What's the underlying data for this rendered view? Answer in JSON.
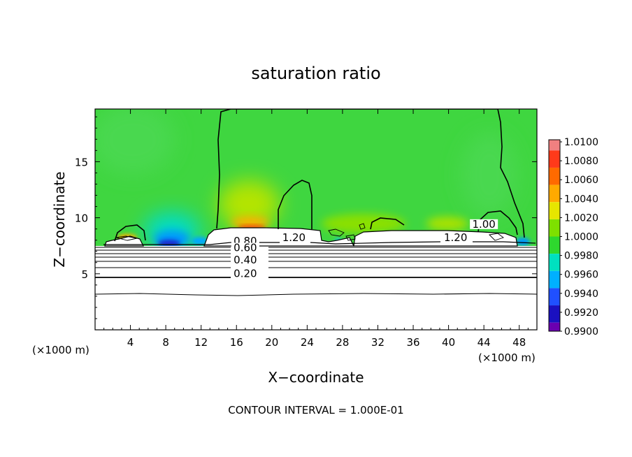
{
  "chart_data": {
    "type": "heatmap",
    "title": "saturation ratio",
    "xlabel": "X−coordinate",
    "ylabel": "Z−coordinate",
    "x_unit_label": "(×1000 m)",
    "y_unit_label": "(×1000 m)",
    "footer": "CONTOUR INTERVAL = 1.000E-01",
    "xlim": [
      0,
      50
    ],
    "ylim": [
      0,
      19.7
    ],
    "x_ticks": [
      4,
      8,
      12,
      16,
      20,
      24,
      28,
      32,
      36,
      40,
      44,
      48
    ],
    "y_ticks": [
      5,
      10,
      15
    ],
    "colorbar": {
      "levels": [
        "1.0100",
        "1.0080",
        "1.0060",
        "1.0040",
        "1.0020",
        "1.0000",
        "0.9980",
        "0.9960",
        "0.9940",
        "0.9920",
        "0.9900"
      ],
      "values": [
        1.01,
        1.008,
        1.006,
        1.004,
        1.002,
        1.0,
        0.998,
        0.996,
        0.994,
        0.992,
        0.99
      ],
      "colors": [
        "#f08080",
        "#ff3a1a",
        "#ff6a00",
        "#ffaa00",
        "#e6e600",
        "#7ee000",
        "#2ed82e",
        "#00e0c0",
        "#00b0ff",
        "#2050ff",
        "#1a10c0",
        "#6a00b0"
      ]
    },
    "contour_labels": [
      {
        "text": "1.20",
        "x": 22.5,
        "y": 8.1
      },
      {
        "text": "1.20",
        "x": 40.8,
        "y": 8.1
      },
      {
        "text": "1.00",
        "x": 44.0,
        "y": 9.3
      },
      {
        "text": "0.80",
        "x": 17.0,
        "y": 7.8
      },
      {
        "text": "0.60",
        "x": 17.0,
        "y": 7.2
      },
      {
        "text": "0.40",
        "x": 17.0,
        "y": 6.1
      },
      {
        "text": "0.20",
        "x": 17.0,
        "y": 4.9
      }
    ],
    "hotspots": [
      {
        "x": 17.5,
        "y": 9.4,
        "value": 1.008
      },
      {
        "x": 5.0,
        "y": 8.0,
        "value": 1.007
      },
      {
        "x": 9.0,
        "y": 7.9,
        "value": 0.991
      },
      {
        "x": 27.3,
        "y": 8.0,
        "value": 0.995
      },
      {
        "x": 47.5,
        "y": 8.0,
        "value": 0.993
      }
    ]
  }
}
